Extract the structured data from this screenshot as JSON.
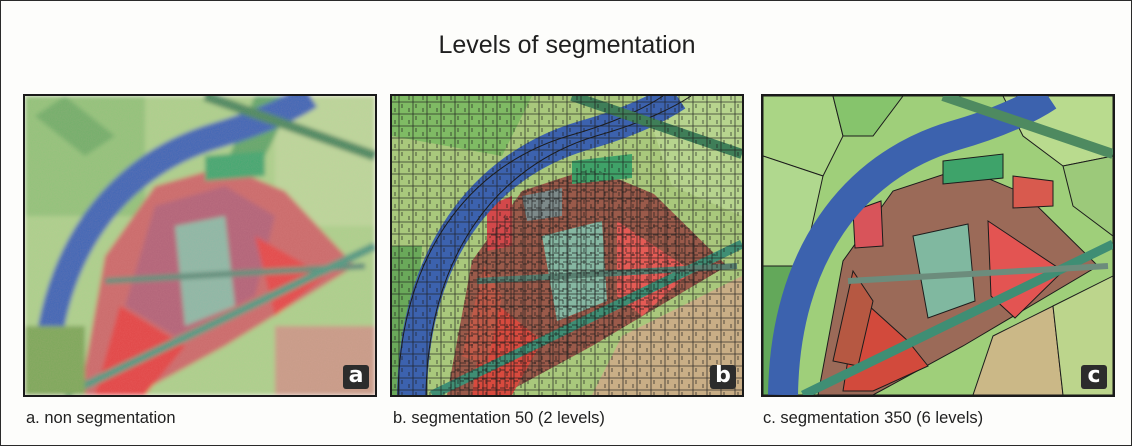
{
  "figure": {
    "title": "Levels of segmentation",
    "panels": [
      {
        "letter": "a",
        "caption": "a. non segmentation"
      },
      {
        "letter": "b",
        "caption": "b. segmentation 50 (2 levels)"
      },
      {
        "letter": "c",
        "caption": "c. segmentation 350 (6 levels)"
      }
    ]
  },
  "colors": {
    "river": "#3a66b4",
    "field_green": "#9fcf7a",
    "field_dark_green": "#5fae5a",
    "crop_red": "#e24a44",
    "crop_brown": "#b0694f",
    "teal": "#4aa88a",
    "segment_line": "#1c1c1c"
  }
}
